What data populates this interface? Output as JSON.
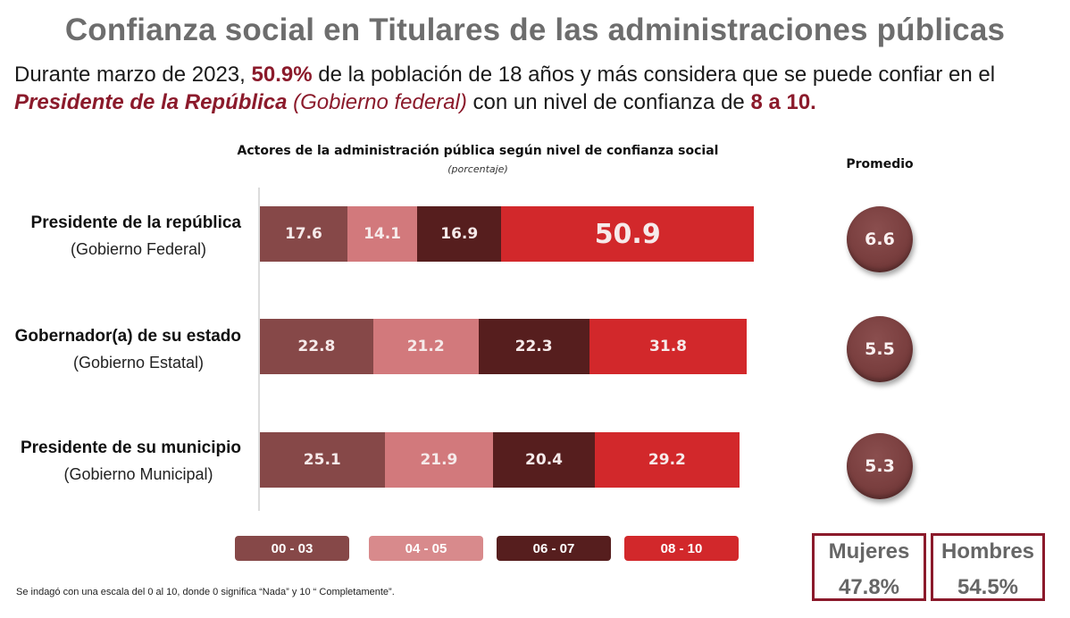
{
  "header": {
    "title": "Confianza social en Titulares de las administraciones públicas",
    "subtitle": {
      "part1": "Durante marzo de 2023, ",
      "highlight_value": "50.9%",
      "part2": " de la población de 18 años y más considera que se puede confiar en el",
      "actor": "Presidente de la República",
      "actor_detail": " (Gobierno federal)",
      "part3": " con un nivel de confianza de ",
      "range": "8 a 10."
    }
  },
  "promedio_title": "Promedio",
  "footnote": "Se indagó con una escala del 0 al 10, donde 0 significa “Nada” y 10 “ Completamente”.",
  "gender": [
    {
      "label": "Mujeres",
      "value": "47.8%"
    },
    {
      "label": "Hombres",
      "value": "54.5%"
    }
  ],
  "colors": {
    "accent": "#8b1a2b",
    "s00_03": "#864848",
    "s04_05": "#d2797c",
    "s06_07": "#561e1e",
    "s08_10": "#d2282b"
  },
  "chart_data": {
    "type": "bar",
    "orientation": "horizontal-stacked",
    "title": "Actores de la administración pública según nivel de confianza social",
    "subtitle": "(porcentaje)",
    "categories": [
      {
        "name": "Presidente de la república",
        "detail": "(Gobierno Federal)",
        "promedio": "6.6"
      },
      {
        "name": "Gobernador(a) de su estado",
        "detail": "(Gobierno Estatal)",
        "promedio": "5.5"
      },
      {
        "name": "Presidente de su municipio",
        "detail": "(Gobierno Municipal)",
        "promedio": "5.3"
      }
    ],
    "series": [
      {
        "name": "00 - 03",
        "color": "#864848",
        "values": [
          17.6,
          22.8,
          25.1
        ]
      },
      {
        "name": "04 - 05",
        "color": "#d2797c",
        "values": [
          14.1,
          21.2,
          21.9
        ]
      },
      {
        "name": "06 - 07",
        "color": "#561e1e",
        "values": [
          16.9,
          22.3,
          20.4
        ]
      },
      {
        "name": "08 - 10",
        "color": "#d2282b",
        "values": [
          50.9,
          31.8,
          29.2
        ]
      }
    ],
    "xlim": [
      0,
      100
    ],
    "legend_position": "bottom",
    "grid": false
  }
}
